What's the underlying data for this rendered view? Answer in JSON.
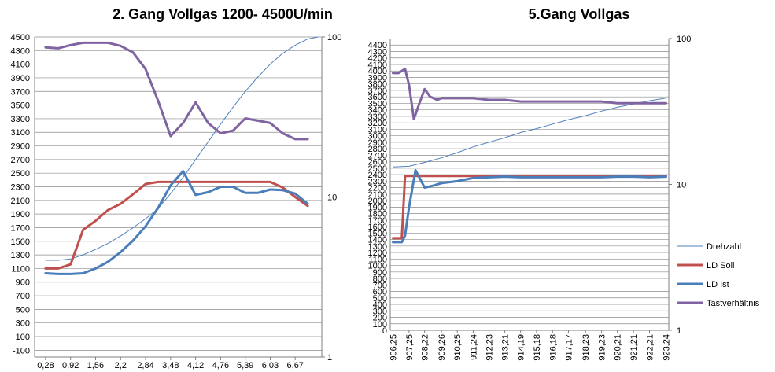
{
  "colors": {
    "drehzahl": "#4f81bd",
    "ld_soll": "#c0504d",
    "ld_ist": "#4a7ebb",
    "tastverhaeltnis": "#8064a2",
    "grid": "#8c8c8c",
    "axis": "#7f7f7f"
  },
  "chart_data": [
    {
      "type": "line",
      "title": "2. Gang Vollgas  1200- 4500U/min",
      "y_ticks": [
        "-100",
        "100",
        "300",
        "500",
        "700",
        "900",
        "1100",
        "1300",
        "1500",
        "1700",
        "1900",
        "2100",
        "2300",
        "2500",
        "2700",
        "2900",
        "3100",
        "3300",
        "3500",
        "3700",
        "3900",
        "4100",
        "4300",
        "4500"
      ],
      "ylim": [
        -200,
        4500
      ],
      "y2_ticks": [
        "1",
        "10",
        "100"
      ],
      "y2lim": [
        1,
        100
      ],
      "y2_scale": "log",
      "x_ticks": [
        "0,28",
        "0,92",
        "1,56",
        "2,2",
        "2,84",
        "3,48",
        "4,12",
        "4,76",
        "5,39",
        "6,03",
        "6,67"
      ],
      "xlim": [
        0,
        7.35
      ],
      "grid": "horizontal",
      "series": [
        {
          "key": "drehzahl",
          "axis": "left",
          "width": 1,
          "x": [
            0.28,
            0.6,
            0.92,
            1.24,
            1.56,
            1.88,
            2.2,
            2.52,
            2.84,
            3.16,
            3.48,
            3.8,
            4.12,
            4.44,
            4.76,
            5.08,
            5.39,
            5.71,
            6.03,
            6.35,
            6.67,
            6.99,
            7.25
          ],
          "values": [
            1220,
            1220,
            1240,
            1300,
            1380,
            1470,
            1580,
            1700,
            1830,
            1980,
            2200,
            2440,
            2700,
            2960,
            3220,
            3470,
            3700,
            3910,
            4100,
            4260,
            4380,
            4470,
            4500
          ]
        },
        {
          "key": "ld_soll",
          "axis": "left",
          "width": 3,
          "x": [
            0.28,
            0.6,
            0.92,
            1.24,
            1.56,
            1.88,
            2.2,
            2.52,
            2.84,
            3.16,
            3.48,
            3.8,
            4.12,
            4.44,
            4.76,
            5.08,
            5.39,
            5.71,
            6.03,
            6.35,
            6.67,
            6.99
          ],
          "values": [
            1100,
            1100,
            1160,
            1670,
            1800,
            1960,
            2050,
            2190,
            2340,
            2370,
            2370,
            2370,
            2370,
            2370,
            2370,
            2370,
            2370,
            2370,
            2370,
            2290,
            2150,
            2020
          ]
        },
        {
          "key": "ld_ist",
          "axis": "left",
          "width": 3,
          "x": [
            0.28,
            0.6,
            0.92,
            1.24,
            1.56,
            1.88,
            2.2,
            2.52,
            2.84,
            3.16,
            3.48,
            3.8,
            4.12,
            4.44,
            4.76,
            5.08,
            5.39,
            5.71,
            6.03,
            6.35,
            6.67,
            6.99
          ],
          "values": [
            1030,
            1020,
            1020,
            1030,
            1100,
            1200,
            1340,
            1510,
            1720,
            1990,
            2320,
            2530,
            2180,
            2220,
            2300,
            2300,
            2210,
            2210,
            2260,
            2250,
            2200,
            2050
          ]
        },
        {
          "key": "tastverhaeltnis",
          "axis": "right",
          "width": 3,
          "x": [
            0.28,
            0.6,
            0.92,
            1.24,
            1.56,
            1.88,
            2.2,
            2.52,
            2.84,
            3.16,
            3.48,
            3.8,
            4.12,
            4.44,
            4.76,
            5.08,
            5.39,
            5.71,
            6.03,
            6.35,
            6.67,
            6.99
          ],
          "values": [
            86,
            85,
            89,
            92,
            92,
            92,
            88,
            80,
            63,
            40,
            24,
            29,
            39,
            29,
            25,
            26,
            31,
            30,
            29,
            25,
            23,
            23
          ]
        }
      ]
    },
    {
      "type": "line",
      "title": "5.Gang Vollgas",
      "y_ticks": [
        "0",
        "100",
        "200",
        "300",
        "400",
        "500",
        "600",
        "700",
        "800",
        "900",
        "1000",
        "1100",
        "1200",
        "1300",
        "1400",
        "1500",
        "1600",
        "1700",
        "1800",
        "1900",
        "2000",
        "2100",
        "2200",
        "2300",
        "2400",
        "2500",
        "2600",
        "2700",
        "2800",
        "2900",
        "3000",
        "3100",
        "3200",
        "3300",
        "3400",
        "3500",
        "3600",
        "3700",
        "3800",
        "3900",
        "4000",
        "4100",
        "4200",
        "4300",
        "4400"
      ],
      "ylim": [
        0,
        4500
      ],
      "y2_ticks": [
        "1",
        "10",
        "100"
      ],
      "y2lim": [
        1,
        100
      ],
      "y2_scale": "log",
      "x_ticks": [
        "906,25",
        "907,25",
        "908,22",
        "909,26",
        "910,25",
        "911,24",
        "912,23",
        "913,21",
        "914,19",
        "915,18",
        "916,18",
        "917,17",
        "918,23",
        "919,23",
        "920,21",
        "921,21",
        "922,21",
        "923,24"
      ],
      "xlim": [
        906.08,
        923.41
      ],
      "grid": "horizontal",
      "legend": [
        "Drehzahl",
        "LD Soll",
        "LD Ist",
        "Tastverhältnis"
      ],
      "legend_position": "right",
      "series": [
        {
          "key": "drehzahl",
          "name": "Drehzahl",
          "axis": "left",
          "width": 1,
          "x": [
            906.25,
            907.25,
            908.22,
            909.26,
            910.25,
            911.24,
            912.23,
            913.21,
            914.19,
            915.18,
            916.18,
            917.17,
            918.23,
            919.23,
            920.21,
            921.21,
            922.21,
            923.24
          ],
          "values": [
            2520,
            2530,
            2590,
            2660,
            2740,
            2830,
            2900,
            2970,
            3050,
            3110,
            3180,
            3250,
            3310,
            3380,
            3440,
            3490,
            3540,
            3580
          ]
        },
        {
          "key": "ld_soll",
          "name": "LD Soll",
          "axis": "left",
          "width": 3,
          "x": [
            906.25,
            906.8,
            907.0,
            907.25,
            907.7,
            908.22,
            909.26,
            910.25,
            911.24,
            912.23,
            913.21,
            914.19,
            915.18,
            916.18,
            917.17,
            918.23,
            919.23,
            920.21,
            921.21,
            922.21,
            923.24
          ],
          "values": [
            1420,
            1420,
            2380,
            2380,
            2380,
            2380,
            2380,
            2380,
            2380,
            2380,
            2380,
            2380,
            2380,
            2380,
            2380,
            2380,
            2380,
            2380,
            2380,
            2380,
            2380
          ]
        },
        {
          "key": "ld_ist",
          "name": "LD Ist",
          "axis": "left",
          "width": 3,
          "x": [
            906.25,
            906.8,
            907.0,
            907.25,
            907.65,
            908.22,
            908.75,
            909.26,
            910.25,
            911.24,
            912.23,
            913.21,
            914.19,
            915.18,
            916.18,
            917.17,
            918.23,
            919.23,
            920.21,
            921.21,
            922.21,
            923.24
          ],
          "values": [
            1360,
            1360,
            1460,
            1900,
            2470,
            2200,
            2230,
            2270,
            2300,
            2350,
            2360,
            2370,
            2360,
            2360,
            2360,
            2360,
            2360,
            2360,
            2370,
            2370,
            2360,
            2370
          ]
        },
        {
          "key": "tastverhaeltnis",
          "name": "Tastverhältnis",
          "axis": "right",
          "width": 3,
          "x": [
            906.25,
            906.6,
            907.0,
            907.25,
            907.55,
            907.85,
            908.22,
            908.55,
            909.0,
            909.26,
            909.7,
            910.25,
            911.24,
            912.23,
            913.21,
            914.19,
            915.18,
            916.18,
            917.17,
            918.23,
            919.23,
            920.21,
            921.21,
            922.21,
            923.24
          ],
          "values": [
            58,
            58,
            62,
            48,
            28,
            35,
            45,
            40,
            38,
            39,
            39,
            39,
            39,
            38,
            38,
            37,
            37,
            37,
            37,
            37,
            37,
            36,
            36,
            36,
            36
          ]
        }
      ]
    }
  ]
}
